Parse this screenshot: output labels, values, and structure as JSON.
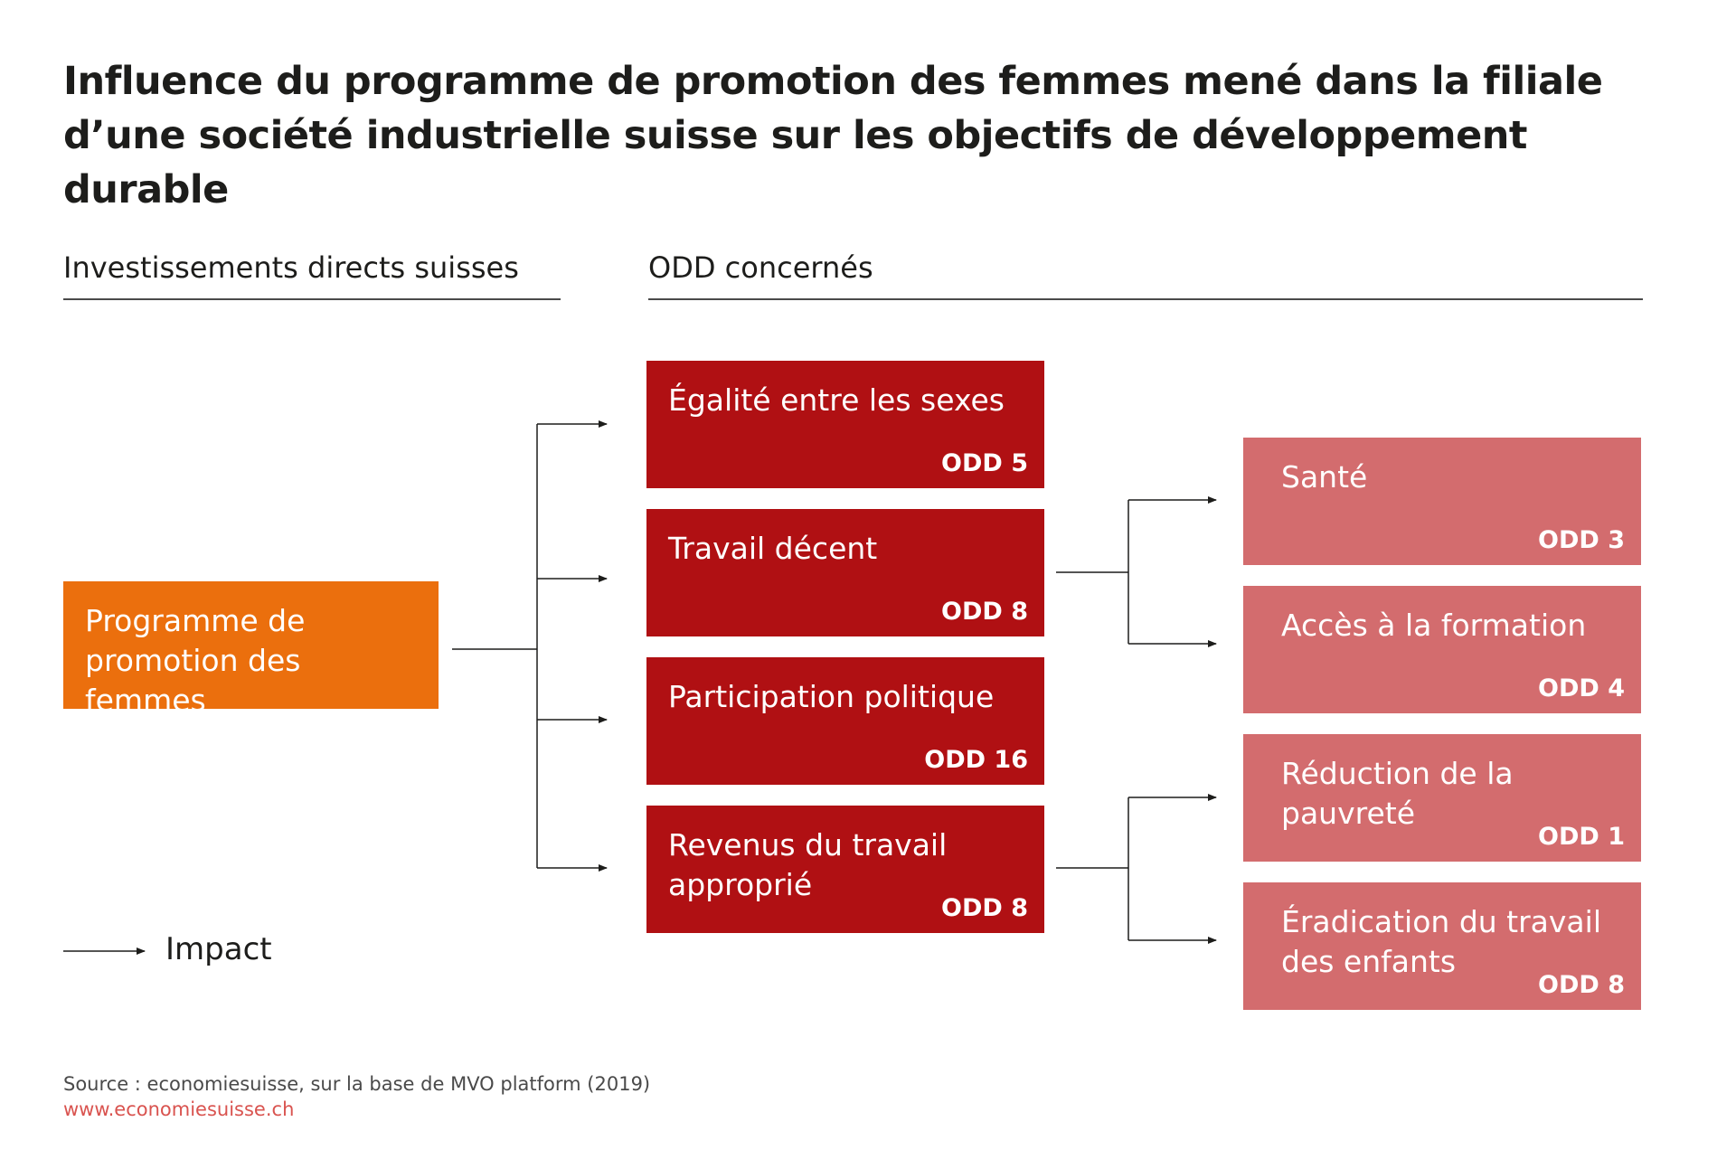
{
  "title": {
    "line1": "Influence du programme de promotion des femmes mené dans la filiale",
    "line2": "d’une société industrielle suisse sur les objectifs de développement durable"
  },
  "columns": {
    "left": "Investissements directs suisses",
    "right": "ODD concernés"
  },
  "source_box": {
    "line1": "Programme de",
    "line2": "promotion des femmes"
  },
  "primary": [
    {
      "line1": "Égalité entre les sexes",
      "line2": "",
      "odd": "ODD 5"
    },
    {
      "line1": "Travail décent",
      "line2": "",
      "odd": "ODD 8"
    },
    {
      "line1": "Participation politique",
      "line2": "",
      "odd": "ODD 16"
    },
    {
      "line1": "Revenus du travail",
      "line2": "approprié",
      "odd": "ODD 8"
    }
  ],
  "secondary": [
    {
      "line1": "Santé",
      "line2": "",
      "odd": "ODD 3"
    },
    {
      "line1": "Accès à la formation",
      "line2": "",
      "odd": "ODD 4"
    },
    {
      "line1": "Réduction de la",
      "line2": "pauvreté",
      "odd": "ODD 1"
    },
    {
      "line1": "Éradication du travail",
      "line2": "des enfants",
      "odd": "ODD 8"
    }
  ],
  "legend": {
    "label": "Impact"
  },
  "footer": {
    "source": "Source : economiesuisse, sur la base de MVO platform (2019)",
    "url": "www.economiesuisse.ch"
  },
  "colors": {
    "source_box": "#eb6f0d",
    "primary_boxes": "#b01013",
    "secondary_boxes": "#d36c6e"
  }
}
